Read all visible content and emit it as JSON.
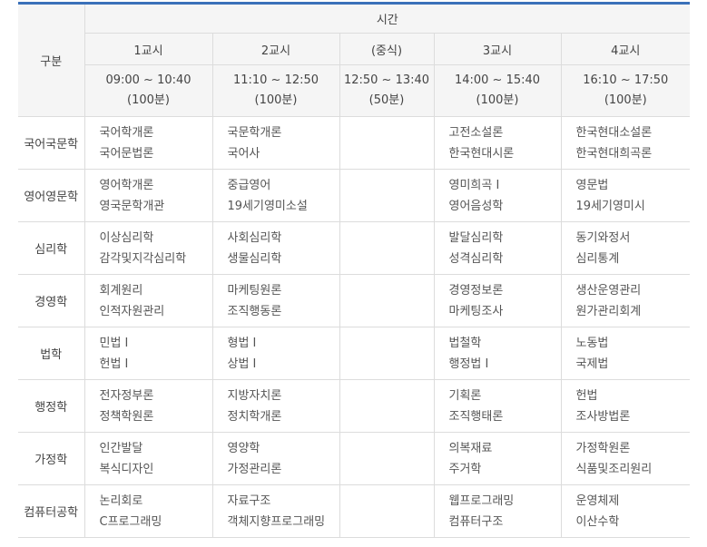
{
  "header": {
    "category_label": "구분",
    "time_label": "시간",
    "periods": [
      {
        "name": "1교시",
        "time": "09:00 ~ 10:40",
        "duration": "(100분)"
      },
      {
        "name": "2교시",
        "time": "11:10 ~ 12:50",
        "duration": "(100분)"
      },
      {
        "name": "(중식)",
        "time": "12:50 ~ 13:40",
        "duration": "(50분)"
      },
      {
        "name": "3교시",
        "time": "14:00 ~ 15:40",
        "duration": "(100분)"
      },
      {
        "name": "4교시",
        "time": "16:10 ~ 17:50",
        "duration": "(100분)"
      }
    ]
  },
  "rows": [
    {
      "dept": "국어국문학",
      "p1": [
        "국어학개론",
        "국어문법론"
      ],
      "p2": [
        "국문학개론",
        "국어사"
      ],
      "p3": [
        "고전소설론",
        "한국현대시론"
      ],
      "p4": [
        "한국현대소설론",
        "한국현대희곡론"
      ]
    },
    {
      "dept": "영어영문학",
      "p1": [
        "영어학개론",
        "영국문학개관"
      ],
      "p2": [
        "중급영어",
        "19세기영미소설"
      ],
      "p3": [
        "영미희곡 I",
        "영어음성학"
      ],
      "p4": [
        "영문법",
        "19세기영미시"
      ]
    },
    {
      "dept": "심리학",
      "p1": [
        "이상심리학",
        "감각및지각심리학"
      ],
      "p2": [
        "사회심리학",
        "생물심리학"
      ],
      "p3": [
        "발달심리학",
        "성격심리학"
      ],
      "p4": [
        "동기와정서",
        "심리통계"
      ]
    },
    {
      "dept": "경영학",
      "p1": [
        "회계원리",
        "인적자원관리"
      ],
      "p2": [
        "마케팅원론",
        "조직행동론"
      ],
      "p3": [
        "경영정보론",
        "마케팅조사"
      ],
      "p4": [
        "생산운영관리",
        "원가관리회계"
      ]
    },
    {
      "dept": "법학",
      "p1": [
        "민법 I",
        "헌법 I"
      ],
      "p2": [
        "형법 I",
        "상법 I"
      ],
      "p3": [
        "법철학",
        "행정법 I"
      ],
      "p4": [
        "노동법",
        "국제법"
      ]
    },
    {
      "dept": "행정학",
      "p1": [
        "전자정부론",
        "정책학원론"
      ],
      "p2": [
        "지방자치론",
        "정치학개론"
      ],
      "p3": [
        "기획론",
        "조직행태론"
      ],
      "p4": [
        "헌법",
        "조사방법론"
      ]
    },
    {
      "dept": "가정학",
      "p1": [
        "인간발달",
        "복식디자인"
      ],
      "p2": [
        "영양학",
        "가정관리론"
      ],
      "p3": [
        "의복재료",
        "주거학"
      ],
      "p4": [
        "가정학원론",
        "식품및조리원리"
      ]
    },
    {
      "dept": "컴퓨터공학",
      "p1": [
        "논리회로",
        "C프로그래밍"
      ],
      "p2": [
        "자료구조",
        "객체지향프로그래밍"
      ],
      "p3": [
        "웹프로그래밍",
        "컴퓨터구조"
      ],
      "p4": [
        "운영체제",
        "이산수학"
      ]
    }
  ],
  "colors": {
    "accent": "#3a71b9",
    "header_bg": "#f5f5f5",
    "border": "#dcdcdc",
    "text": "#555555"
  }
}
